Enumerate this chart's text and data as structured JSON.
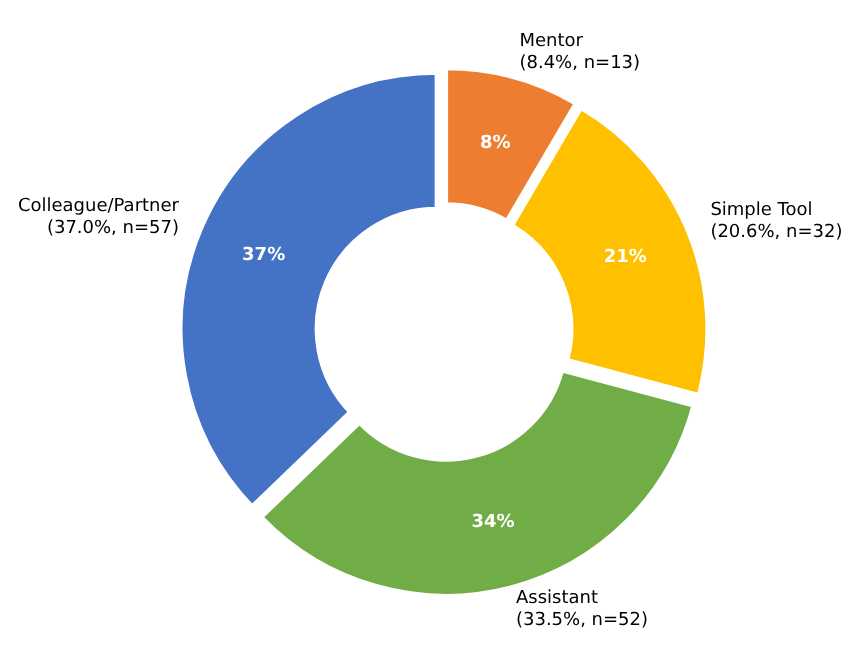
{
  "chart_data": {
    "type": "donut",
    "categories": [
      "Mentor\n(8.4%, n=13)",
      "Simple Tool\n(20.6%, n=32)",
      "Assistant\n(33.5%, n=52)",
      "Colleague/Partner\n(37.0%, n=57)"
    ],
    "values": [
      8.4,
      20.6,
      33.5,
      37.0
    ],
    "colors": [
      "#ed7d31",
      "#ffc000",
      "#70ad47",
      "#4472c4"
    ],
    "value_labels": [
      "8%",
      "21%",
      "34%",
      "37%"
    ]
  }
}
